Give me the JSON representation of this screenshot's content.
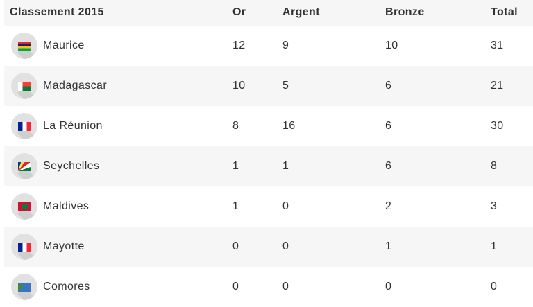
{
  "header": {
    "title": "Classement 2015",
    "or": "Or",
    "argent": "Argent",
    "bronze": "Bronze",
    "total": "Total"
  },
  "rows": [
    {
      "country": "Maurice",
      "flag": "mauritius-flag-icon",
      "or": "12",
      "argent": "9",
      "bronze": "10",
      "total": "31"
    },
    {
      "country": "Madagascar",
      "flag": "madagascar-flag-icon",
      "or": "10",
      "argent": "5",
      "bronze": "6",
      "total": "21"
    },
    {
      "country": "La Réunion",
      "flag": "france-flag-icon",
      "or": "8",
      "argent": "16",
      "bronze": "6",
      "total": "30"
    },
    {
      "country": "Seychelles",
      "flag": "seychelles-flag-icon",
      "or": "1",
      "argent": "1",
      "bronze": "6",
      "total": "8"
    },
    {
      "country": "Maldives",
      "flag": "maldives-flag-icon",
      "or": "1",
      "argent": "0",
      "bronze": "2",
      "total": "3"
    },
    {
      "country": "Mayotte",
      "flag": "france-flag-icon",
      "or": "0",
      "argent": "0",
      "bronze": "1",
      "total": "1"
    },
    {
      "country": "Comores",
      "flag": "comoros-flag-icon",
      "or": "0",
      "argent": "0",
      "bronze": "0",
      "total": "0"
    }
  ]
}
